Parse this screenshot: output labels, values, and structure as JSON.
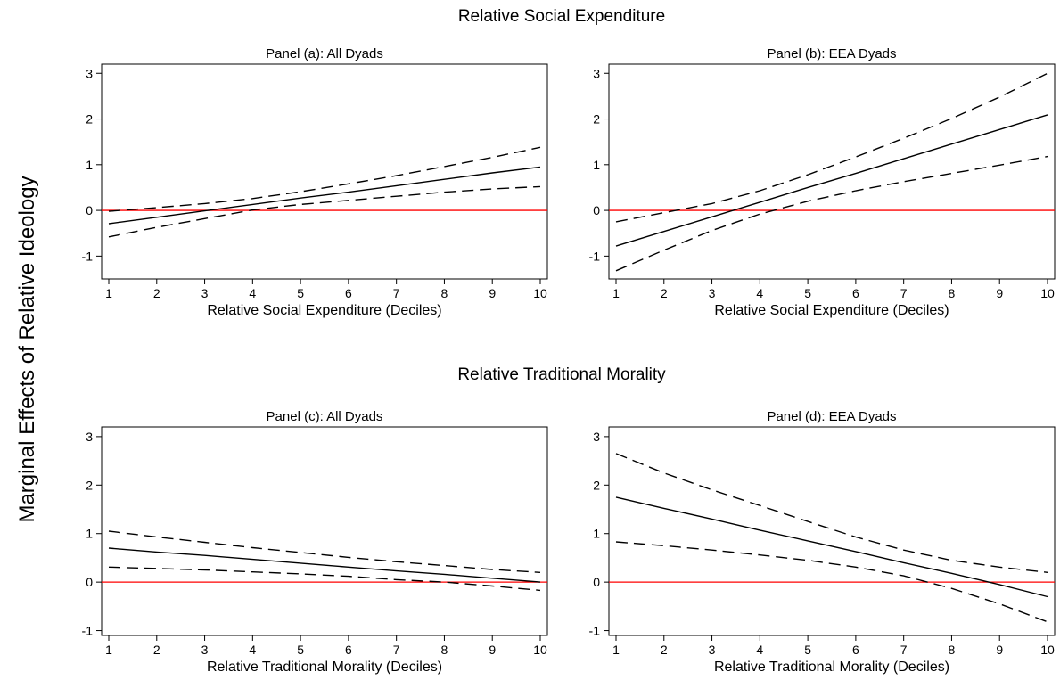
{
  "figure": {
    "ylabel": "Marginal Effects of Relative Ideology",
    "section_titles": [
      "Relative Social Expenditure",
      "Relative Traditional Morality"
    ]
  },
  "colors": {
    "zero_line": "#ff0000",
    "lines": "#000000"
  },
  "chart_data": [
    {
      "type": "line",
      "title": "Panel (a): All Dyads",
      "xlabel": "Relative Social Expenditure (Deciles)",
      "ylabel": "",
      "xlim": [
        1,
        10
      ],
      "ylim": [
        -1.5,
        3.2
      ],
      "xticks": [
        1,
        2,
        3,
        4,
        5,
        6,
        7,
        8,
        9,
        10
      ],
      "yticks": [
        -1,
        0,
        1,
        2,
        3
      ],
      "x": [
        1,
        2,
        3,
        4,
        5,
        6,
        7,
        8,
        9,
        10
      ],
      "series": [
        {
          "role": "estimate",
          "values": [
            -0.29,
            -0.15,
            -0.01,
            0.13,
            0.27,
            0.4,
            0.54,
            0.68,
            0.82,
            0.95
          ]
        },
        {
          "role": "upper",
          "values": [
            -0.02,
            0.06,
            0.15,
            0.26,
            0.41,
            0.58,
            0.76,
            0.96,
            1.16,
            1.38
          ]
        },
        {
          "role": "lower",
          "values": [
            -0.58,
            -0.37,
            -0.18,
            0.01,
            0.13,
            0.22,
            0.31,
            0.4,
            0.47,
            0.52
          ]
        }
      ],
      "reference_line": 0
    },
    {
      "type": "line",
      "title": "Panel (b): EEA Dyads",
      "xlabel": "Relative Social Expenditure (Deciles)",
      "ylabel": "",
      "xlim": [
        1,
        10
      ],
      "ylim": [
        -1.5,
        3.2
      ],
      "xticks": [
        1,
        2,
        3,
        4,
        5,
        6,
        7,
        8,
        9,
        10
      ],
      "yticks": [
        -1,
        0,
        1,
        2,
        3
      ],
      "x": [
        1,
        2,
        3,
        4,
        5,
        6,
        7,
        8,
        9,
        10
      ],
      "series": [
        {
          "role": "estimate",
          "values": [
            -0.78,
            -0.46,
            -0.14,
            0.18,
            0.5,
            0.81,
            1.13,
            1.45,
            1.77,
            2.09
          ]
        },
        {
          "role": "upper",
          "values": [
            -0.25,
            -0.05,
            0.15,
            0.43,
            0.78,
            1.17,
            1.58,
            2.01,
            2.48,
            3.0
          ]
        },
        {
          "role": "lower",
          "values": [
            -1.32,
            -0.87,
            -0.44,
            -0.08,
            0.2,
            0.43,
            0.63,
            0.81,
            0.99,
            1.18
          ]
        }
      ],
      "reference_line": 0
    },
    {
      "type": "line",
      "title": "Panel (c): All Dyads",
      "xlabel": "Relative Traditional Morality (Deciles)",
      "ylabel": "",
      "xlim": [
        1,
        10
      ],
      "ylim": [
        -1.1,
        3.2
      ],
      "xticks": [
        1,
        2,
        3,
        4,
        5,
        6,
        7,
        8,
        9,
        10
      ],
      "yticks": [
        -1,
        0,
        1,
        2,
        3
      ],
      "x": [
        1,
        2,
        3,
        4,
        5,
        6,
        7,
        8,
        9,
        10
      ],
      "series": [
        {
          "role": "estimate",
          "values": [
            0.7,
            0.62,
            0.55,
            0.47,
            0.39,
            0.31,
            0.23,
            0.16,
            0.08,
            0.0
          ]
        },
        {
          "role": "upper",
          "values": [
            1.05,
            0.93,
            0.82,
            0.71,
            0.61,
            0.51,
            0.42,
            0.34,
            0.26,
            0.2
          ]
        },
        {
          "role": "lower",
          "values": [
            0.31,
            0.28,
            0.25,
            0.21,
            0.17,
            0.12,
            0.05,
            0.0,
            -0.08,
            -0.17
          ]
        }
      ],
      "reference_line": 0
    },
    {
      "type": "line",
      "title": "Panel (d): EEA Dyads",
      "xlabel": "Relative Traditional Morality (Deciles)",
      "ylabel": "",
      "xlim": [
        1,
        10
      ],
      "ylim": [
        -1.1,
        3.2
      ],
      "xticks": [
        1,
        2,
        3,
        4,
        5,
        6,
        7,
        8,
        9,
        10
      ],
      "yticks": [
        -1,
        0,
        1,
        2,
        3
      ],
      "x": [
        1,
        2,
        3,
        4,
        5,
        6,
        7,
        8,
        9,
        10
      ],
      "series": [
        {
          "role": "estimate",
          "values": [
            1.75,
            1.52,
            1.3,
            1.07,
            0.85,
            0.63,
            0.4,
            0.18,
            -0.05,
            -0.3
          ]
        },
        {
          "role": "upper",
          "values": [
            2.65,
            2.25,
            1.9,
            1.58,
            1.25,
            0.93,
            0.66,
            0.45,
            0.31,
            0.2
          ]
        },
        {
          "role": "lower",
          "values": [
            0.83,
            0.75,
            0.66,
            0.56,
            0.45,
            0.31,
            0.13,
            -0.13,
            -0.45,
            -0.82
          ]
        }
      ],
      "reference_line": 0
    }
  ]
}
